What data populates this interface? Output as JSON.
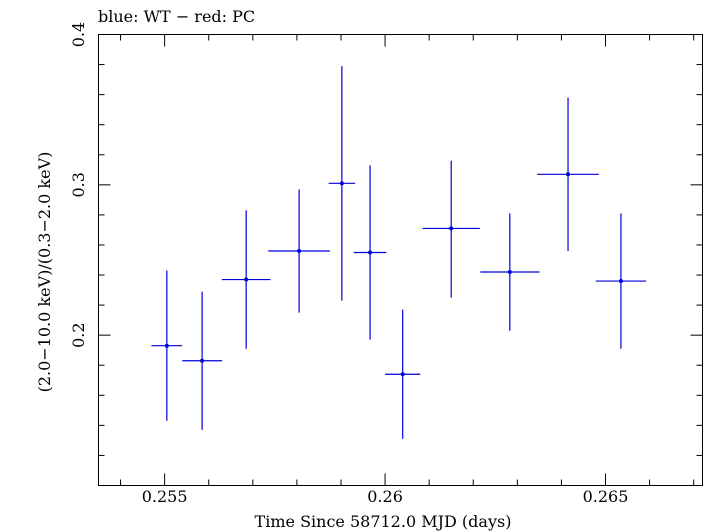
{
  "chart_data": {
    "type": "scatter",
    "title": "blue: WT − red: PC",
    "xlabel": "Time Since 58712.0 MJD (days)",
    "ylabel": "(2.0−10.0 keV)/(0.3−2.0 keV)",
    "xlim": [
      0.2535,
      0.2672
    ],
    "ylim": [
      0.1,
      0.4
    ],
    "x_major_ticks": [
      0.255,
      0.26,
      0.265
    ],
    "x_minor_step": 0.001,
    "y_major_ticks": [
      0.2,
      0.3,
      0.4
    ],
    "y_minor_step": 0.02,
    "x_tick_labels": [
      "0.255",
      "0.26",
      "0.265"
    ],
    "y_tick_labels": [
      "0.2",
      "0.3",
      "0.4"
    ],
    "grid": false,
    "series": [
      {
        "name": "WT",
        "color": "#0000dd",
        "points": [
          {
            "x": 0.25505,
            "xerr": 0.00035,
            "y": 0.193,
            "ylo": 0.143,
            "yhi": 0.243
          },
          {
            "x": 0.25585,
            "xerr": 0.00045,
            "y": 0.183,
            "ylo": 0.137,
            "yhi": 0.229
          },
          {
            "x": 0.25685,
            "xerr": 0.00055,
            "y": 0.237,
            "ylo": 0.191,
            "yhi": 0.283
          },
          {
            "x": 0.25805,
            "xerr": 0.0007,
            "y": 0.256,
            "ylo": 0.215,
            "yhi": 0.297
          },
          {
            "x": 0.25902,
            "xerr": 0.0003,
            "y": 0.301,
            "ylo": 0.223,
            "yhi": 0.379
          },
          {
            "x": 0.25966,
            "xerr": 0.00037,
            "y": 0.255,
            "ylo": 0.197,
            "yhi": 0.313
          },
          {
            "x": 0.2604,
            "xerr": 0.0004,
            "y": 0.174,
            "ylo": 0.131,
            "yhi": 0.217
          },
          {
            "x": 0.2615,
            "xerr": 0.00065,
            "y": 0.271,
            "ylo": 0.225,
            "yhi": 0.316
          },
          {
            "x": 0.26283,
            "xerr": 0.00067,
            "y": 0.242,
            "ylo": 0.203,
            "yhi": 0.281
          },
          {
            "x": 0.26415,
            "xerr": 0.0007,
            "y": 0.307,
            "ylo": 0.256,
            "yhi": 0.358
          },
          {
            "x": 0.26535,
            "xerr": 0.00057,
            "y": 0.236,
            "ylo": 0.191,
            "yhi": 0.281
          }
        ]
      }
    ]
  }
}
